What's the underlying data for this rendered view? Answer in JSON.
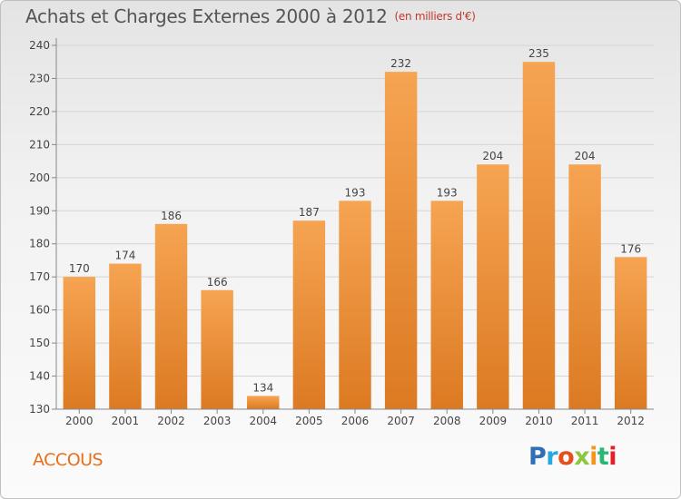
{
  "header": {
    "title": "Achats et Charges Externes 2000 à 2012",
    "subtitle": "(en milliers d'€)"
  },
  "footer": {
    "commune": "ACCOUS",
    "logo_letters": [
      {
        "char": "P",
        "color": "#2f6fb5"
      },
      {
        "char": "r",
        "color": "#27a9e0"
      },
      {
        "char": "o",
        "color": "#e84e1b"
      },
      {
        "char": "x",
        "color": "#8dc63f"
      },
      {
        "char": "i",
        "color": "#f7941d"
      },
      {
        "char": "t",
        "color": "#2bb673"
      },
      {
        "char": "i",
        "color": "#ec1c24"
      }
    ]
  },
  "colors": {
    "bar_top": "#f6a452",
    "bar_bottom": "#dc7a22",
    "grid": "#d4d4d4",
    "axis": "#888888",
    "commune": "#e8701a"
  },
  "chart_data": {
    "type": "bar",
    "categories": [
      "2000",
      "2001",
      "2002",
      "2003",
      "2004",
      "2005",
      "2006",
      "2007",
      "2008",
      "2009",
      "2010",
      "2011",
      "2012"
    ],
    "values": [
      170,
      174,
      186,
      166,
      134,
      187,
      193,
      232,
      193,
      204,
      235,
      204,
      176
    ],
    "yticks": [
      130,
      140,
      150,
      160,
      170,
      180,
      190,
      200,
      210,
      220,
      230,
      240
    ],
    "ylim": [
      130,
      240
    ],
    "grid": true
  }
}
